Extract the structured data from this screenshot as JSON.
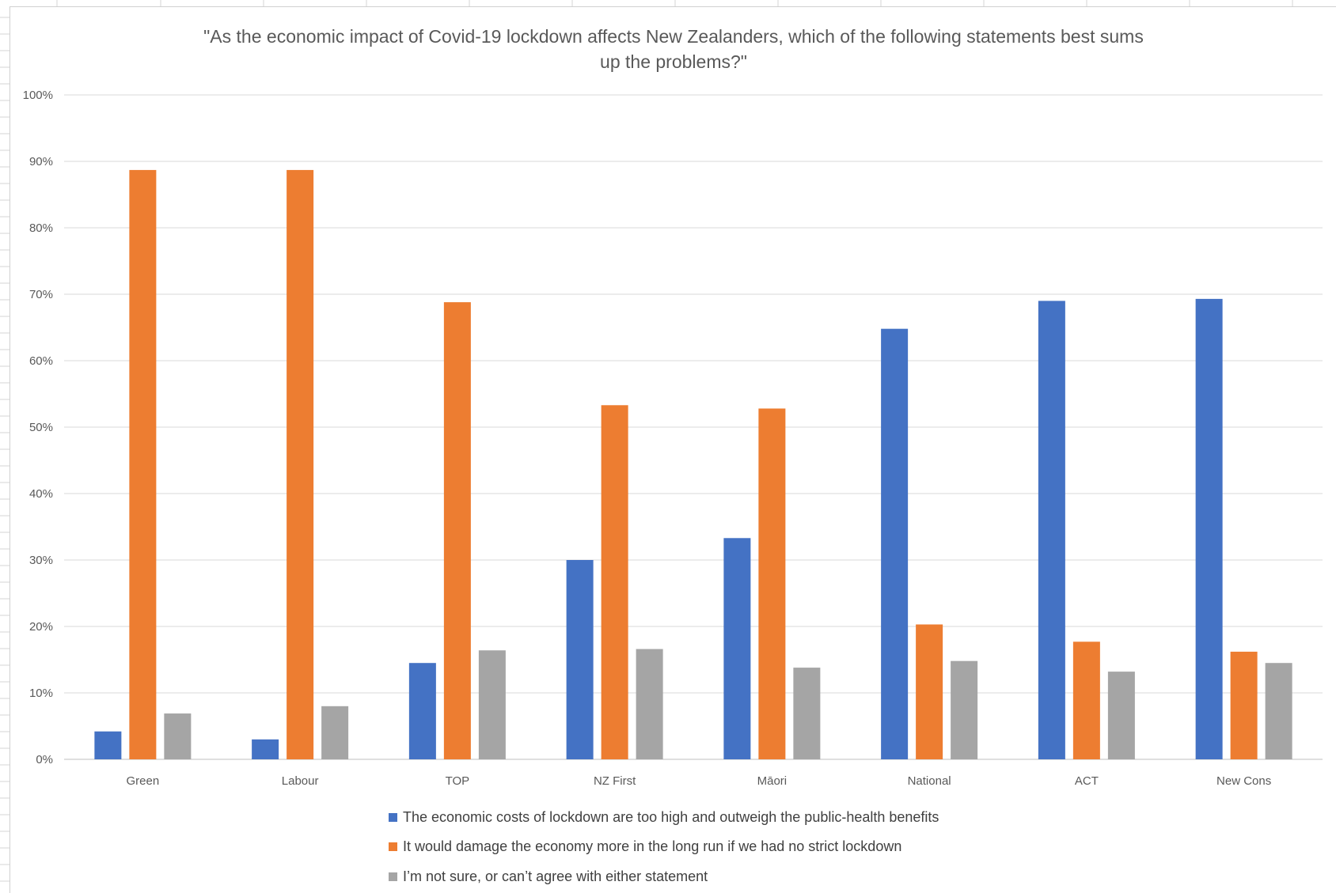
{
  "chart_data": {
    "type": "bar",
    "title_lines": [
      "\"As the economic impact of Covid-19 lockdown affects New Zealanders, which of the following statements best sums",
      "up the problems?\""
    ],
    "categories": [
      "Green",
      "Labour",
      "TOP",
      "NZ First",
      "Māori",
      "National",
      "ACT",
      "New Cons"
    ],
    "series": [
      {
        "name": "The economic costs of lockdown are too high and outweigh the public-health benefits",
        "color": "#4472c4",
        "values": [
          4.2,
          3.0,
          14.5,
          30.0,
          33.3,
          64.8,
          69.0,
          69.3
        ]
      },
      {
        "name": "It would damage the economy more in the long run if we had no strict lockdown",
        "color": "#ed7d31",
        "values": [
          88.7,
          88.7,
          68.8,
          53.3,
          52.8,
          20.3,
          17.7,
          16.2
        ]
      },
      {
        "name": "I’m not sure, or can’t agree with either statement",
        "color": "#a5a5a5",
        "values": [
          6.9,
          8.0,
          16.4,
          16.6,
          13.8,
          14.8,
          13.2,
          14.5
        ]
      }
    ],
    "yticks": [
      "0%",
      "10%",
      "20%",
      "30%",
      "40%",
      "50%",
      "60%",
      "70%",
      "80%",
      "90%",
      "100%"
    ],
    "ylim": [
      0,
      100
    ],
    "grid": true,
    "legend_position": "bottom"
  }
}
